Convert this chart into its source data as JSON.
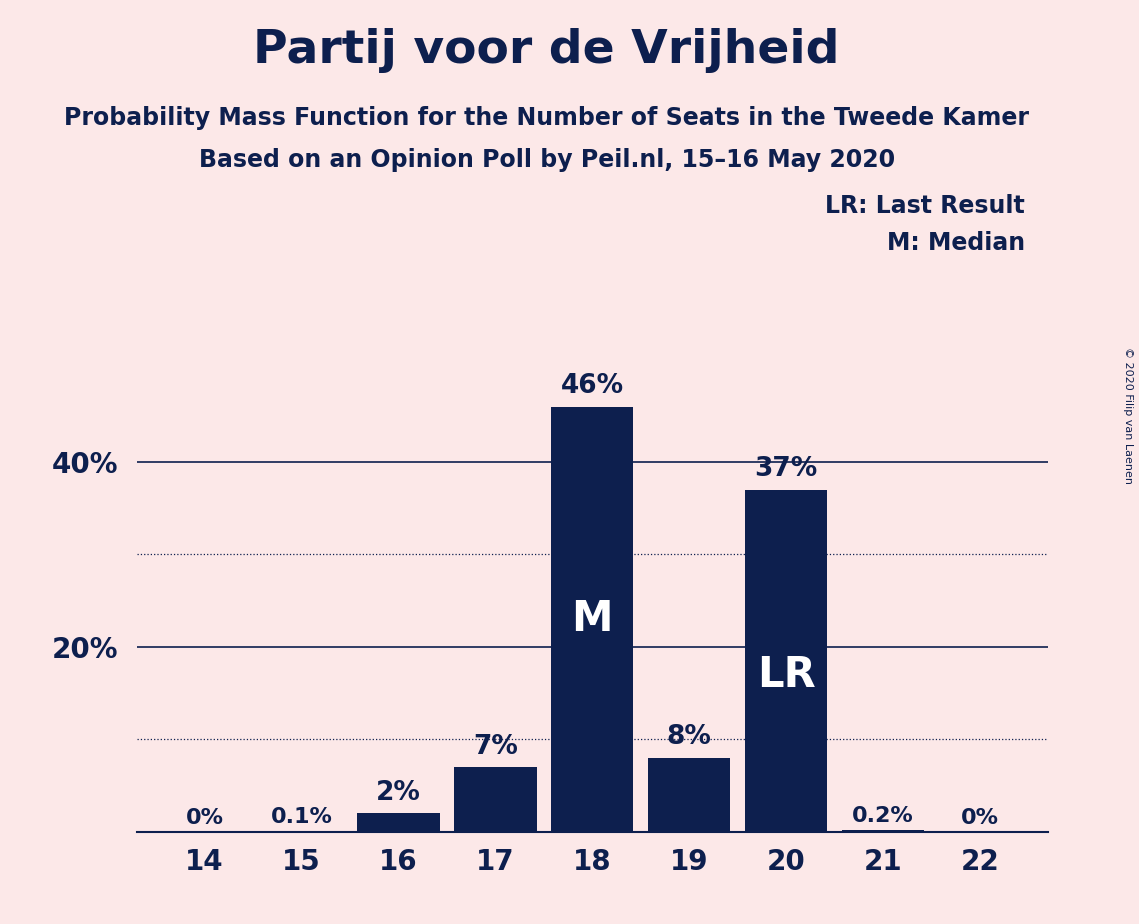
{
  "title": "Partij voor de Vrijheid",
  "subtitle1": "Probability Mass Function for the Number of Seats in the Tweede Kamer",
  "subtitle2": "Based on an Opinion Poll by Peil.nl, 15–16 May 2020",
  "copyright": "© 2020 Filip van Laenen",
  "legend_lr": "LR: Last Result",
  "legend_m": "M: Median",
  "background_color": "#fce8e8",
  "bar_color": "#0d1f4e",
  "categories": [
    14,
    15,
    16,
    17,
    18,
    19,
    20,
    21,
    22
  ],
  "values": [
    0.0,
    0.1,
    2.0,
    7.0,
    46.0,
    8.0,
    37.0,
    0.2,
    0.0
  ],
  "labels": [
    "0%",
    "0.1%",
    "2%",
    "7%",
    "46%",
    "8%",
    "37%",
    "0.2%",
    "0%"
  ],
  "median_bar": 18,
  "lr_bar": 20,
  "dotted_grid_ticks": [
    10,
    30
  ],
  "solid_grid_ticks": [
    20,
    40
  ],
  "title_fontsize": 34,
  "subtitle_fontsize": 17,
  "label_fontsize_small": 16,
  "label_fontsize_large": 19,
  "tick_fontsize": 20,
  "inner_label_fontsize": 30,
  "legend_fontsize": 17,
  "copyright_fontsize": 8
}
